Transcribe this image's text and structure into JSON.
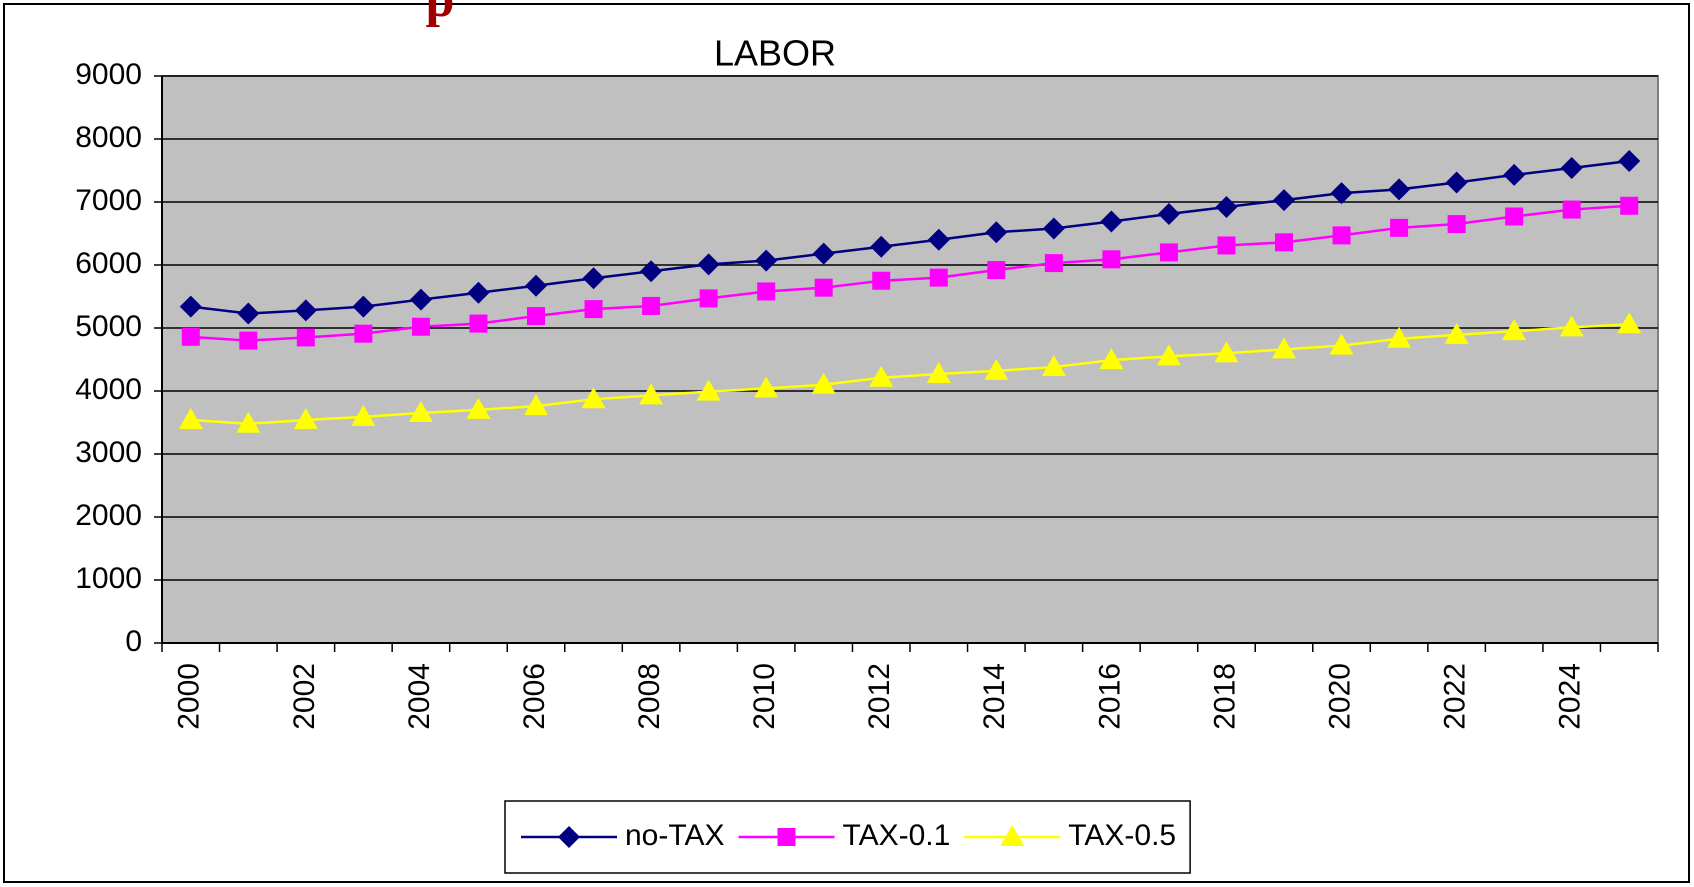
{
  "annotation": "p",
  "chart_data": {
    "type": "line",
    "title": "LABOR",
    "categories": [
      "2000",
      null,
      "2002",
      null,
      "2004",
      null,
      "2006",
      null,
      "2008",
      null,
      "2010",
      null,
      "2012",
      null,
      "2014",
      null,
      "2016",
      null,
      "2018",
      null,
      "2020",
      null,
      "2022",
      null,
      "2024",
      null
    ],
    "series": [
      {
        "name": "no-TAX",
        "color": "#000080",
        "marker": "diamond",
        "values": [
          5340,
          5230,
          5280,
          5340,
          5450,
          5560,
          5670,
          5790,
          5900,
          6010,
          6070,
          6180,
          6290,
          6400,
          6520,
          6580,
          6690,
          6810,
          6920,
          7030,
          7140,
          7200,
          7310,
          7430,
          7540,
          7650
        ]
      },
      {
        "name": "TAX-0.1",
        "color": "#ff00ff",
        "marker": "square",
        "values": [
          4860,
          4800,
          4850,
          4910,
          5020,
          5070,
          5190,
          5300,
          5350,
          5470,
          5580,
          5640,
          5750,
          5800,
          5920,
          6030,
          6090,
          6200,
          6310,
          6360,
          6470,
          6590,
          6650,
          6770,
          6880,
          6940
        ]
      },
      {
        "name": "TAX-0.5",
        "color": "#ffff00",
        "marker": "triangle",
        "values": [
          3540,
          3480,
          3540,
          3590,
          3650,
          3700,
          3760,
          3870,
          3930,
          3990,
          4040,
          4100,
          4210,
          4270,
          4320,
          4380,
          4490,
          4550,
          4600,
          4660,
          4720,
          4830,
          4890,
          4950,
          5010,
          5060
        ]
      }
    ],
    "ylim": [
      0,
      9000
    ],
    "yticks": [
      0,
      1000,
      2000,
      3000,
      4000,
      5000,
      6000,
      7000,
      8000,
      9000
    ],
    "grid": true,
    "legend": "bottom",
    "plot_background": "#c0c0c0"
  }
}
